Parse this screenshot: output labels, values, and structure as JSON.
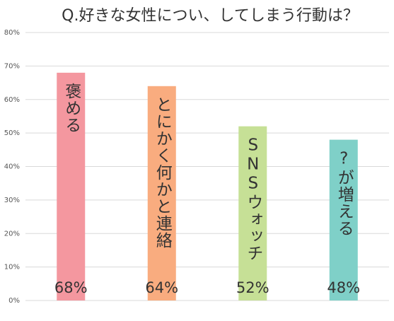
{
  "chart_data": {
    "type": "bar",
    "title": "Q.好きな女性につい、してしまう行動は？",
    "categories": [
      "褒める",
      "とにかく何かと連絡",
      "SNSウォッチ",
      "?が増える"
    ],
    "values": [
      68,
      64,
      52,
      48
    ],
    "value_labels": [
      "68%",
      "64%",
      "52%",
      "48%"
    ],
    "colors": [
      "#f4979f",
      "#f9ac7f",
      "#c6e096",
      "#7fd0c8"
    ],
    "ylim": [
      0,
      80
    ],
    "yticks": [
      {
        "value": 0,
        "label": "0%"
      },
      {
        "value": 10,
        "label": "10%"
      },
      {
        "value": 20,
        "label": "20%"
      },
      {
        "value": 30,
        "label": "30%"
      },
      {
        "value": 40,
        "label": "40%"
      },
      {
        "value": 50,
        "label": "50%"
      },
      {
        "value": 60,
        "label": "60%"
      },
      {
        "value": 70,
        "label": "70%"
      },
      {
        "value": 80,
        "label": "80%"
      }
    ],
    "grid": true
  }
}
